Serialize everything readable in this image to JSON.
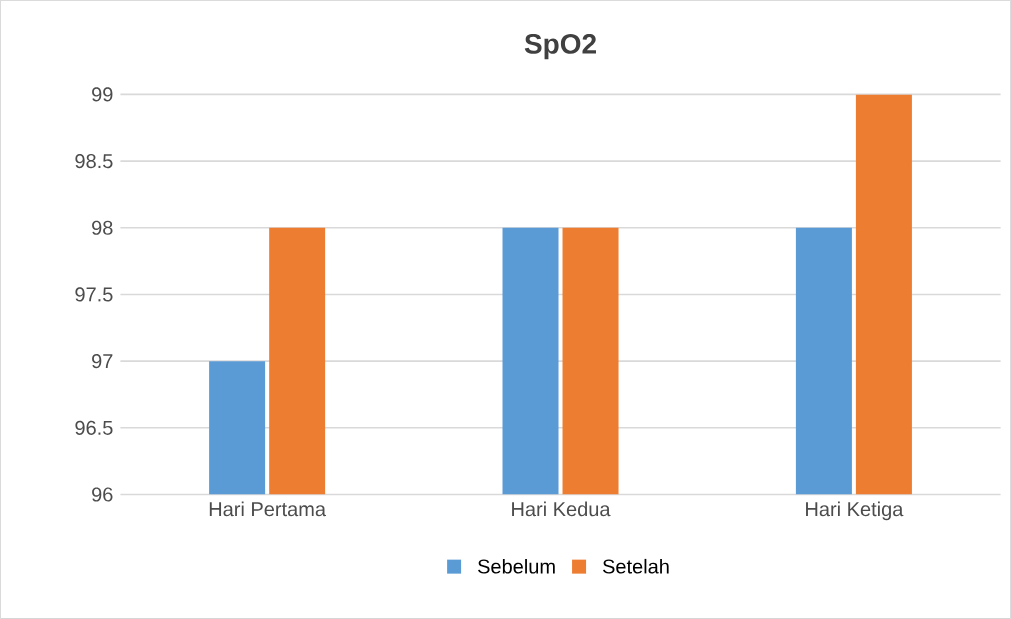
{
  "chart_data": {
    "type": "bar",
    "title": "SpO2",
    "categories": [
      "Hari Pertama",
      "Hari Kedua",
      "Hari Ketiga"
    ],
    "series": [
      {
        "name": "Sebelum",
        "color": "#5b9bd5",
        "values": [
          97,
          98,
          98
        ]
      },
      {
        "name": "Setelah",
        "color": "#ed7d31",
        "values": [
          98,
          98,
          99
        ]
      }
    ],
    "ylim": [
      96,
      99
    ],
    "yticks": [
      96,
      96.5,
      97,
      97.5,
      98,
      98.5,
      99
    ],
    "grid": "y",
    "legend": "bottom"
  }
}
